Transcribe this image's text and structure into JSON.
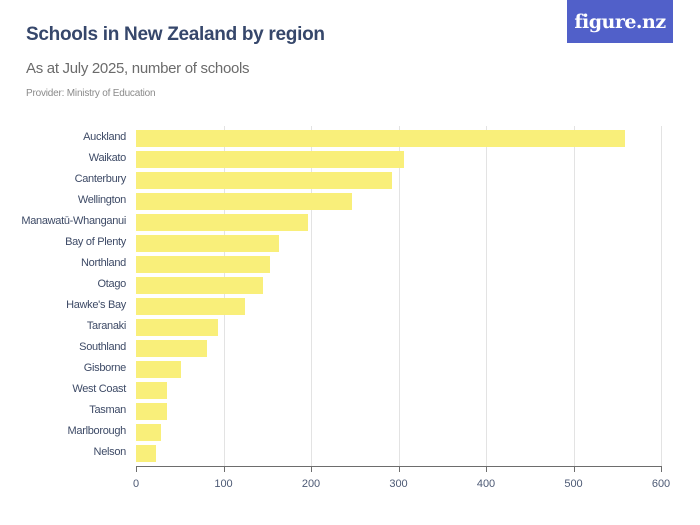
{
  "header": {
    "title": "Schools in New Zealand by region",
    "subtitle": "As at July 2025, number of schools",
    "provider": "Provider: Ministry of Education",
    "logo": "figure.nz"
  },
  "colors": {
    "bar": "#f9ef7a",
    "title": "#36476b",
    "logo_bg": "#5160c9"
  },
  "chart_data": {
    "type": "bar",
    "orientation": "horizontal",
    "title": "Schools in New Zealand by region",
    "subtitle": "As at July 2025, number of schools",
    "xlabel": "",
    "ylabel": "",
    "xlim": [
      0,
      600
    ],
    "xticks": [
      0,
      100,
      200,
      300,
      400,
      500,
      600
    ],
    "grid": true,
    "categories": [
      "Auckland",
      "Waikato",
      "Canterbury",
      "Wellington",
      "Manawatū-Whanganui",
      "Bay of Plenty",
      "Northland",
      "Otago",
      "Hawke's Bay",
      "Taranaki",
      "Southland",
      "Gisborne",
      "West Coast",
      "Tasman",
      "Marlborough",
      "Nelson"
    ],
    "values": [
      559,
      306,
      293,
      247,
      197,
      163,
      153,
      145,
      125,
      94,
      81,
      51,
      35,
      35,
      29,
      23
    ]
  }
}
